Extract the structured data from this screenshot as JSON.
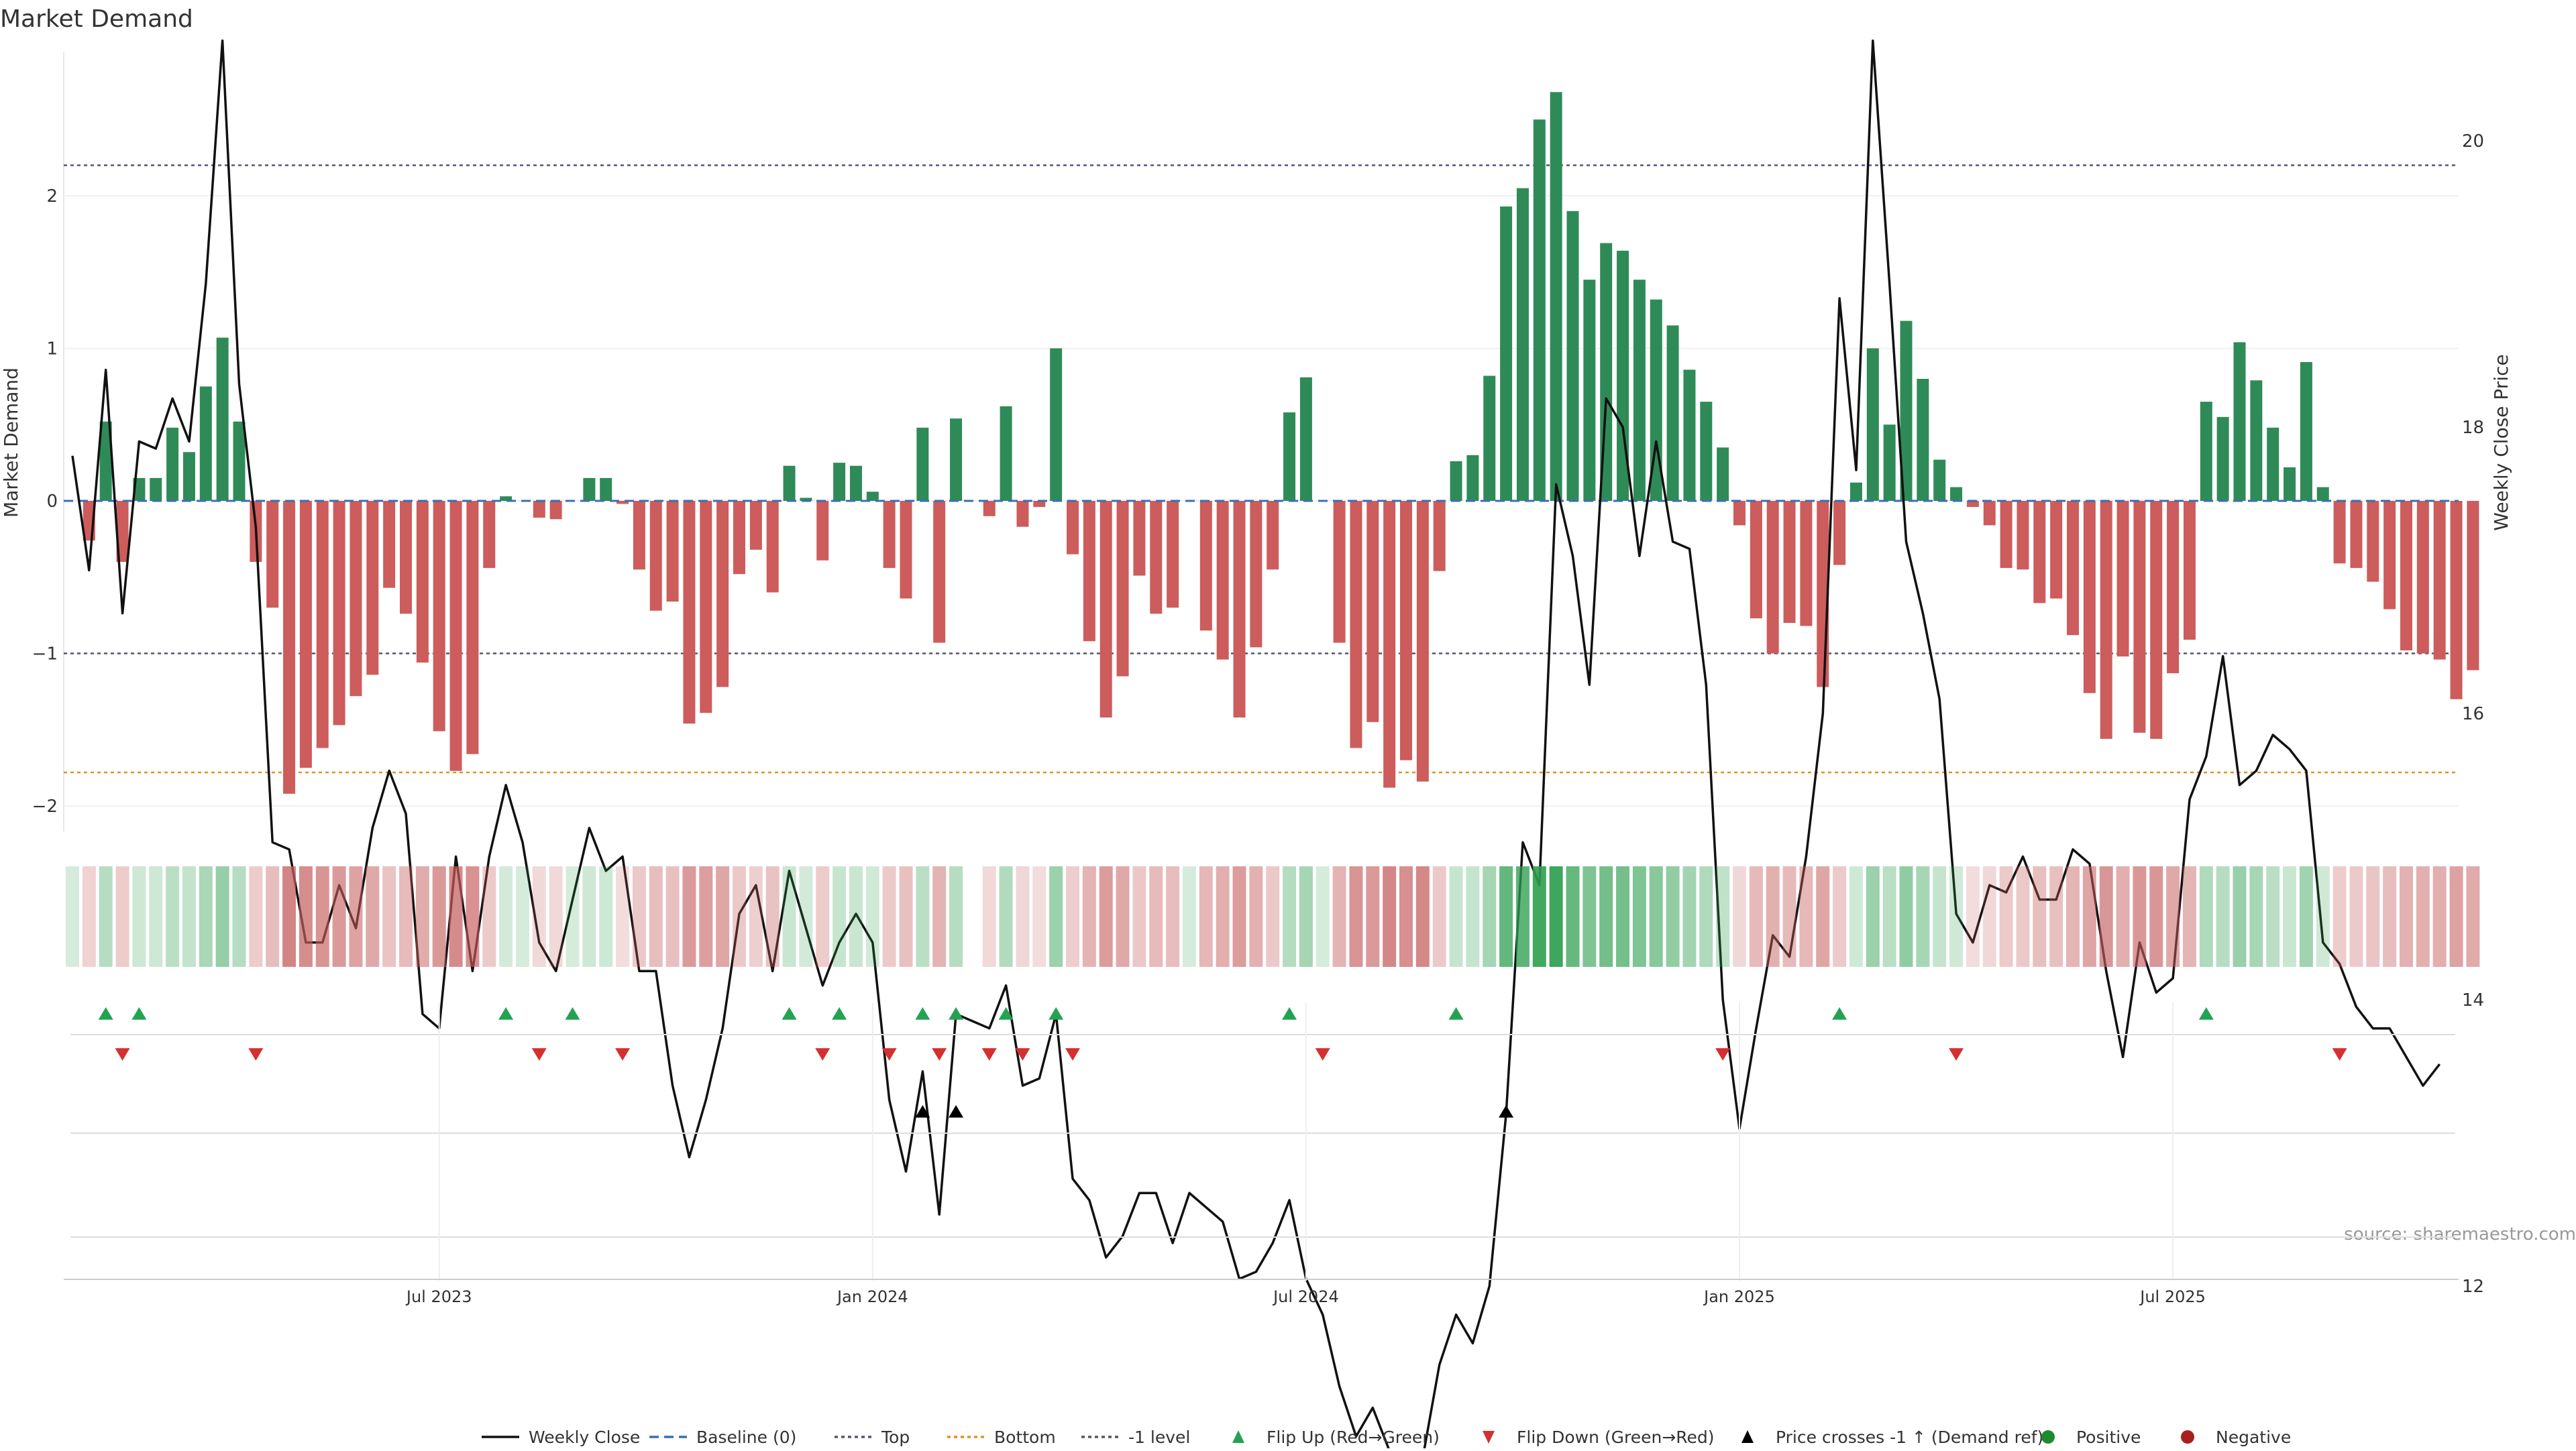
{
  "chart_data": {
    "type": "bar",
    "title": "Market Demand",
    "ylabel": "Market Demand",
    "y2label": "Weekly Close Price",
    "ylim": [
      -2.2,
      2.9
    ],
    "y2lim": [
      10.75,
      21.25
    ],
    "yticks": [
      {
        "value": -2,
        "label": "−2"
      },
      {
        "value": -1,
        "label": "−1"
      },
      {
        "value": 0,
        "label": "0"
      },
      {
        "value": 1,
        "label": "1"
      },
      {
        "value": 2,
        "label": "2"
      }
    ],
    "y2ticks": [
      {
        "value": 12,
        "label": "12"
      },
      {
        "value": 14,
        "label": "14"
      },
      {
        "value": 16,
        "label": "16"
      },
      {
        "value": 18,
        "label": "18"
      },
      {
        "value": 20,
        "label": "20"
      }
    ],
    "xticks": [
      {
        "week": 22,
        "label": "Jul 2023"
      },
      {
        "week": 48,
        "label": "Jan 2024"
      },
      {
        "week": 74,
        "label": "Jul 2024"
      },
      {
        "week": 100,
        "label": "Jan 2025"
      },
      {
        "week": 126,
        "label": "Jul 2025"
      }
    ],
    "first_week": "2023-01-30",
    "reference_lines": {
      "top": 2.2,
      "bottom": -1.78,
      "minus_one": -1.0,
      "baseline": 0
    },
    "demand": [
      0.0,
      -0.26,
      0.52,
      -0.4,
      0.15,
      0.15,
      0.48,
      0.32,
      0.75,
      1.07,
      0.52,
      -0.4,
      -0.7,
      -1.92,
      -1.75,
      -1.62,
      -1.47,
      -1.28,
      -1.14,
      -0.57,
      -0.74,
      -1.06,
      -1.51,
      -1.77,
      -1.66,
      -0.44,
      0.03,
      0.0,
      -0.11,
      -0.12,
      0.0,
      0.15,
      0.15,
      -0.02,
      -0.45,
      -0.72,
      -0.66,
      -1.46,
      -1.39,
      -1.22,
      -0.48,
      -0.32,
      -0.6,
      0.23,
      0.02,
      -0.39,
      0.25,
      0.23,
      0.06,
      -0.44,
      -0.64,
      0.48,
      -0.93,
      0.54,
      0.0,
      -0.1,
      0.62,
      -0.17,
      -0.04,
      1.0,
      -0.35,
      -0.92,
      -1.42,
      -1.15,
      -0.49,
      -0.74,
      -0.7,
      0.0,
      -0.85,
      -1.04,
      -1.42,
      -0.96,
      -0.45,
      0.58,
      0.81,
      0.0,
      -0.93,
      -1.62,
      -1.45,
      -1.88,
      -1.7,
      -1.84,
      -0.46,
      0.26,
      0.3,
      0.82,
      1.93,
      2.05,
      2.5,
      2.68,
      1.9,
      1.45,
      1.69,
      1.64,
      1.45,
      1.32,
      1.15,
      0.86,
      0.65,
      0.35,
      -0.16,
      -0.77,
      -1.0,
      -0.8,
      -0.82,
      -1.22,
      -0.42,
      0.12,
      1.0,
      0.5,
      1.18,
      0.8,
      0.27,
      0.09,
      -0.04,
      -0.16,
      -0.44,
      -0.45,
      -0.67,
      -0.64,
      -0.88,
      -1.26,
      -1.56,
      -1.02,
      -1.52,
      -1.56,
      -1.13,
      -0.91,
      0.65,
      0.55,
      1.04,
      0.79,
      0.48,
      0.22,
      0.91,
      0.09,
      -0.41,
      -0.44,
      -0.53,
      -0.71,
      -0.98,
      -1.0,
      -1.04,
      -1.3,
      -1.11
    ],
    "series": [
      {
        "name": "Weekly Close",
        "values": [
          17.8,
          17.0,
          18.4,
          16.7,
          17.9,
          17.85,
          18.2,
          17.9,
          19.0,
          20.7,
          18.3,
          17.3,
          15.1,
          15.05,
          14.4,
          14.4,
          14.8,
          14.5,
          15.2,
          15.6,
          15.3,
          13.9,
          13.8,
          15.0,
          14.2,
          15.0,
          15.5,
          15.1,
          14.4,
          14.2,
          14.7,
          15.2,
          14.9,
          15.0,
          14.2,
          14.2,
          13.4,
          12.9,
          13.3,
          13.8,
          14.6,
          14.8,
          14.2,
          14.9,
          14.5,
          14.1,
          14.4,
          14.6,
          14.4,
          13.3,
          12.8,
          13.5,
          12.5,
          13.9,
          13.85,
          13.8,
          14.1,
          13.4,
          13.45,
          13.9,
          12.75,
          12.6,
          12.2,
          12.35,
          12.65,
          12.65,
          12.3,
          12.65,
          12.55,
          12.45,
          12.05,
          12.1,
          12.3,
          12.6,
          12.05,
          11.8,
          11.3,
          10.95,
          11.15,
          10.85,
          10.8,
          10.8,
          11.45,
          11.8,
          11.6,
          12.0,
          13.2,
          15.1,
          14.8,
          17.6,
          17.1,
          16.2,
          18.2,
          18.0,
          17.1,
          17.9,
          17.2,
          17.15,
          16.2,
          14.0,
          13.1,
          13.8,
          14.45,
          14.3,
          15.0,
          16.0,
          18.9,
          17.7,
          20.7,
          19.0,
          17.2,
          16.7,
          16.1,
          14.6,
          14.4,
          14.8,
          14.75,
          15.0,
          14.7,
          14.7,
          15.05,
          14.95,
          14.2,
          13.6,
          14.4,
          14.05,
          14.15,
          15.4,
          15.7,
          16.4,
          15.5,
          15.6,
          15.85,
          15.75,
          15.6,
          14.4,
          14.25,
          13.95,
          13.8,
          13.8,
          13.6,
          13.4,
          13.55
        ]
      }
    ],
    "flip_up_weeks": [
      2,
      4,
      26,
      30,
      43,
      46,
      51,
      53,
      56,
      59,
      73,
      83,
      106,
      128
    ],
    "flip_down_weeks": [
      3,
      11,
      28,
      33,
      45,
      49,
      52,
      55,
      57,
      60,
      75,
      99,
      113,
      136
    ],
    "price_cross_weeks": [
      51,
      53,
      86
    ],
    "strip_gaps": [
      54
    ],
    "legend": [
      {
        "label": "Weekly Close",
        "icon": "line-solid",
        "color": "#111111"
      },
      {
        "label": "Baseline (0)",
        "icon": "line-dashed",
        "color": "#3a6fb0"
      },
      {
        "label": "Top",
        "icon": "line-dotted",
        "color": "#555577"
      },
      {
        "label": "Bottom",
        "icon": "line-dotted",
        "color": "#e0921d"
      },
      {
        "label": "-1 level",
        "icon": "line-dotted",
        "color": "#555566"
      },
      {
        "label": "Flip Up (Red→Green)",
        "icon": "triangle-up",
        "color": "#22a352"
      },
      {
        "label": "Flip Down (Green→Red)",
        "icon": "triangle-down",
        "color": "#d62f2f"
      },
      {
        "label": "Price crosses -1 ↑ (Demand ref)",
        "icon": "triangle-up",
        "color": "#000000"
      },
      {
        "label": "Positive",
        "icon": "dot",
        "color": "#1e8a2e"
      },
      {
        "label": "Negative",
        "icon": "dot",
        "color": "#a8201e"
      }
    ],
    "colors": {
      "positive_bar": "#2e8b57",
      "negative_bar": "#cd5c5c",
      "strip_green": "#2e9e4f",
      "strip_red": "#c45a5a"
    },
    "source": "source: sharemaestro.com"
  }
}
